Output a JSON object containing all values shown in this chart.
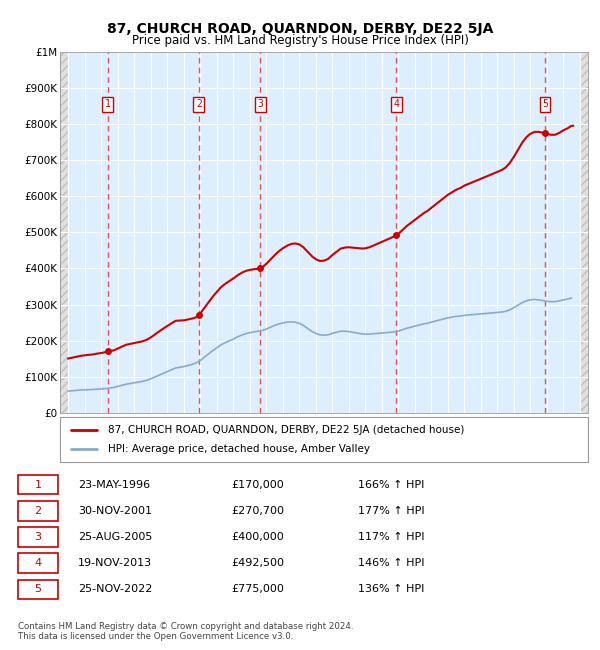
{
  "title": "87, CHURCH ROAD, QUARNDON, DERBY, DE22 5JA",
  "subtitle": "Price paid vs. HM Land Registry's House Price Index (HPI)",
  "property_label": "87, CHURCH ROAD, QUARNDON, DERBY, DE22 5JA (detached house)",
  "hpi_label": "HPI: Average price, detached house, Amber Valley",
  "sales": [
    {
      "num": 1,
      "date": "23-MAY-1996",
      "year": 1996.39,
      "price": 170000,
      "pct": "166%",
      "dir": "↑"
    },
    {
      "num": 2,
      "date": "30-NOV-2001",
      "year": 2001.91,
      "price": 270700,
      "pct": "177%",
      "dir": "↑"
    },
    {
      "num": 3,
      "date": "25-AUG-2005",
      "year": 2005.65,
      "price": 400000,
      "pct": "117%",
      "dir": "↑"
    },
    {
      "num": 4,
      "date": "19-NOV-2013",
      "year": 2013.88,
      "price": 492500,
      "pct": "146%",
      "dir": "↑"
    },
    {
      "num": 5,
      "date": "25-NOV-2022",
      "year": 2022.9,
      "price": 775000,
      "pct": "136%",
      "dir": "↑"
    }
  ],
  "property_color": "#cc0000",
  "hpi_color": "#88aacc",
  "dashed_color": "#dd4444",
  "marker_color": "#cc0000",
  "background_color": "#ddeeff",
  "ylim": [
    0,
    1000000
  ],
  "xlim": [
    1993.5,
    2025.5
  ],
  "yticks": [
    0,
    100000,
    200000,
    300000,
    400000,
    500000,
    600000,
    700000,
    800000,
    900000,
    1000000
  ],
  "ytick_labels": [
    "£0",
    "£100K",
    "£200K",
    "£300K",
    "£400K",
    "£500K",
    "£600K",
    "£700K",
    "£800K",
    "£900K",
    "£1M"
  ],
  "xticks": [
    1994,
    1995,
    1996,
    1997,
    1998,
    1999,
    2000,
    2001,
    2002,
    2003,
    2004,
    2005,
    2006,
    2007,
    2008,
    2009,
    2010,
    2011,
    2012,
    2013,
    2014,
    2015,
    2016,
    2017,
    2018,
    2019,
    2020,
    2021,
    2022,
    2023,
    2024,
    2025
  ],
  "footer": "Contains HM Land Registry data © Crown copyright and database right 2024.\nThis data is licensed under the Open Government Licence v3.0.",
  "years_hpi": [
    1994,
    1994.25,
    1994.5,
    1994.75,
    1995,
    1995.25,
    1995.5,
    1995.75,
    1996,
    1996.25,
    1996.5,
    1996.75,
    1997,
    1997.25,
    1997.5,
    1997.75,
    1998,
    1998.25,
    1998.5,
    1998.75,
    1999,
    1999.25,
    1999.5,
    1999.75,
    2000,
    2000.25,
    2000.5,
    2000.75,
    2001,
    2001.25,
    2001.5,
    2001.75,
    2002,
    2002.25,
    2002.5,
    2002.75,
    2003,
    2003.25,
    2003.5,
    2003.75,
    2004,
    2004.25,
    2004.5,
    2004.75,
    2005,
    2005.25,
    2005.5,
    2005.75,
    2006,
    2006.25,
    2006.5,
    2006.75,
    2007,
    2007.25,
    2007.5,
    2007.75,
    2008,
    2008.25,
    2008.5,
    2008.75,
    2009,
    2009.25,
    2009.5,
    2009.75,
    2010,
    2010.25,
    2010.5,
    2010.75,
    2011,
    2011.25,
    2011.5,
    2011.75,
    2012,
    2012.25,
    2012.5,
    2012.75,
    2013,
    2013.25,
    2013.5,
    2013.75,
    2014,
    2014.25,
    2014.5,
    2014.75,
    2015,
    2015.25,
    2015.5,
    2015.75,
    2016,
    2016.25,
    2016.5,
    2016.75,
    2017,
    2017.25,
    2017.5,
    2017.75,
    2018,
    2018.25,
    2018.5,
    2018.75,
    2019,
    2019.25,
    2019.5,
    2019.75,
    2020,
    2020.25,
    2020.5,
    2020.75,
    2021,
    2021.25,
    2021.5,
    2021.75,
    2022,
    2022.25,
    2022.5,
    2022.75,
    2023,
    2023.25,
    2023.5,
    2023.75,
    2024,
    2024.25,
    2024.5
  ],
  "hpi_values": [
    60000,
    61000,
    62000,
    63000,
    63500,
    64000,
    64500,
    65500,
    66000,
    67000,
    68500,
    70000,
    73000,
    76000,
    79000,
    81000,
    83000,
    85000,
    87000,
    90000,
    94000,
    99000,
    104000,
    109000,
    114000,
    119000,
    124000,
    126000,
    128000,
    131000,
    134000,
    138000,
    145000,
    154000,
    163000,
    172000,
    180000,
    188000,
    194000,
    199000,
    204000,
    210000,
    215000,
    219000,
    222000,
    224000,
    226000,
    228000,
    232000,
    237000,
    242000,
    246000,
    249000,
    251000,
    252000,
    251000,
    248000,
    242000,
    234000,
    226000,
    220000,
    216000,
    215000,
    216000,
    220000,
    223000,
    226000,
    226000,
    225000,
    223000,
    221000,
    219000,
    218000,
    218000,
    219000,
    220000,
    221000,
    222000,
    223000,
    224000,
    226000,
    230000,
    234000,
    237000,
    240000,
    243000,
    246000,
    248000,
    251000,
    254000,
    257000,
    260000,
    263000,
    265000,
    267000,
    268000,
    270000,
    271000,
    272000,
    273000,
    274000,
    275000,
    276000,
    277000,
    278000,
    279000,
    281000,
    285000,
    291000,
    298000,
    305000,
    310000,
    313000,
    314000,
    313000,
    311000,
    309000,
    308000,
    308000,
    310000,
    313000,
    315000,
    318000
  ]
}
